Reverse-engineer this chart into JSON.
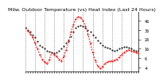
{
  "title": "Milw. Outdoor Temperature (vs) Heat Index (Last 24 Hours)",
  "background_color": "#ffffff",
  "plot_bg_color": "#ffffff",
  "grid_color": "#888888",
  "temp_color": "#000000",
  "hi_color": "#ff0000",
  "x": [
    0,
    1,
    2,
    3,
    4,
    5,
    6,
    7,
    8,
    9,
    10,
    11,
    12,
    13,
    14,
    15,
    16,
    17,
    18,
    19,
    20,
    21,
    22,
    23,
    24,
    25,
    26,
    27,
    28,
    29,
    30,
    31,
    32,
    33,
    34,
    35,
    36,
    37,
    38,
    39,
    40,
    41,
    42,
    43,
    44,
    45,
    46,
    47
  ],
  "temp": [
    38,
    36,
    34,
    31,
    28,
    24,
    20,
    18,
    16,
    14,
    13,
    12,
    11,
    12,
    14,
    16,
    19,
    22,
    25,
    29,
    34,
    38,
    40,
    41,
    40,
    38,
    36,
    34,
    31,
    28,
    25,
    22,
    20,
    18,
    17,
    16,
    15,
    14,
    15,
    16,
    17,
    18,
    18,
    17,
    16,
    15,
    14,
    14
  ],
  "heat_index": [
    38,
    35,
    32,
    28,
    22,
    16,
    10,
    5,
    2,
    0,
    5,
    12,
    10,
    8,
    5,
    3,
    8,
    15,
    24,
    34,
    42,
    48,
    50,
    49,
    46,
    40,
    32,
    22,
    12,
    4,
    -2,
    -5,
    -3,
    0,
    2,
    3,
    3,
    4,
    5,
    7,
    10,
    12,
    14,
    15,
    14,
    13,
    12,
    11
  ],
  "ylim": [
    -8,
    55
  ],
  "xlim": [
    0,
    47
  ],
  "yticks": [
    -4,
    6,
    16,
    26,
    36,
    46
  ],
  "yticklabels": [
    "-4",
    "6",
    "16",
    "26",
    "36",
    "46"
  ],
  "grid_x_positions": [
    0,
    4,
    8,
    12,
    16,
    20,
    24,
    28,
    32,
    36,
    40,
    44,
    47
  ],
  "title_fontsize": 4.5,
  "tick_fontsize": 3.5
}
